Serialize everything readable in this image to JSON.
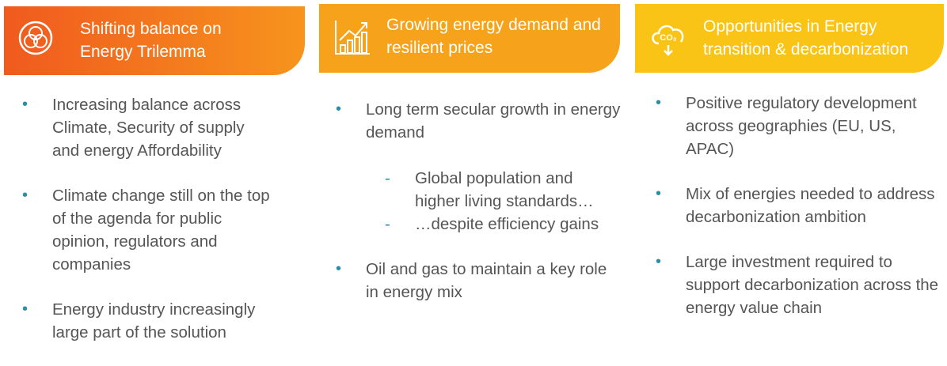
{
  "columns": [
    {
      "title": "Shifting balance on Energy Trilemma",
      "items": [
        {
          "text": "Increasing balance across Climate, Security of supply and energy Affordability"
        },
        {
          "text": "Climate change still on the top of the agenda for public opinion, regulators and companies"
        },
        {
          "text": "Energy industry increasingly large part of the solution"
        }
      ]
    },
    {
      "title": "Growing energy demand and resilient prices",
      "items": [
        {
          "text": "Long term secular growth in energy demand",
          "subitems": [
            "Global population and higher living standards…",
            "…despite efficiency gains"
          ]
        },
        {
          "text": "Oil and gas to maintain a key role in energy mix"
        }
      ]
    },
    {
      "title": "Opportunities in Energy transition & decarbonization",
      "items": [
        {
          "text": "Positive regulatory development across geographies (EU, US, APAC)"
        },
        {
          "text": "Mix of energies needed to address decarbonization ambition"
        },
        {
          "text": "Large investment required to support decarbonization across the energy value chain"
        }
      ]
    }
  ]
}
